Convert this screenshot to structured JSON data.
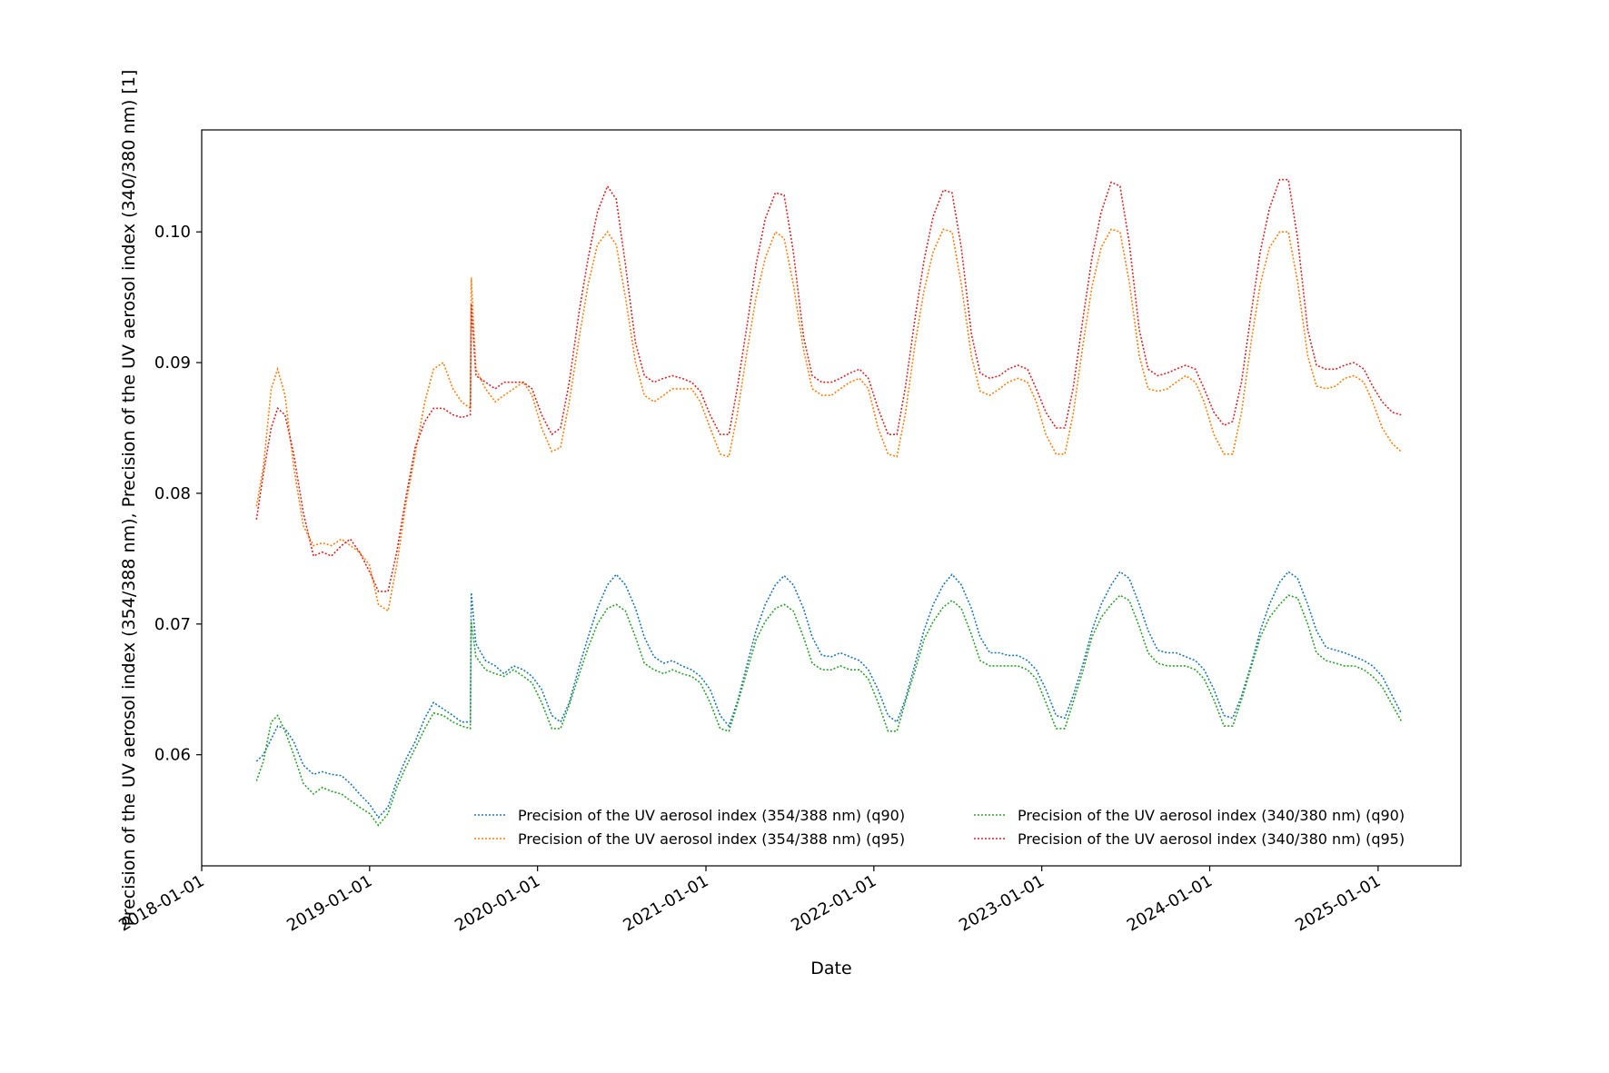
{
  "chart_data": {
    "type": "line",
    "title": "",
    "xlabel": "Date",
    "ylabel": "Precision of the UV aerosol index (354/388 nm), Precision of the UV aerosol index (340/380 nm) [1]",
    "x_range": [
      "2018-01-01",
      "2025-06-30"
    ],
    "ylim": [
      0.0515,
      0.1078
    ],
    "x_ticks": [
      "2018-01-01",
      "2019-01-01",
      "2020-01-01",
      "2021-01-01",
      "2022-01-01",
      "2023-01-01",
      "2024-01-01",
      "2025-01-01"
    ],
    "y_ticks": [
      0.06,
      0.07,
      0.08,
      0.09,
      0.1
    ],
    "y_tick_labels": [
      "0.06",
      "0.07",
      "0.08",
      "0.09",
      "0.10"
    ],
    "grid": false,
    "legend_position": "lower-right",
    "legend_columns": 2,
    "line_style": "dotted",
    "x": [
      "2018-04-30",
      "2018-05-15",
      "2018-06-01",
      "2018-06-15",
      "2018-07-01",
      "2018-07-20",
      "2018-08-10",
      "2018-09-01",
      "2018-09-20",
      "2018-10-10",
      "2018-11-01",
      "2018-11-20",
      "2018-12-10",
      "2019-01-01",
      "2019-01-20",
      "2019-02-10",
      "2019-03-01",
      "2019-03-20",
      "2019-04-10",
      "2019-05-01",
      "2019-05-20",
      "2019-06-10",
      "2019-07-01",
      "2019-07-20",
      "2019-08-08",
      "2019-08-10",
      "2019-08-20",
      "2019-09-10",
      "2019-10-01",
      "2019-10-20",
      "2019-11-10",
      "2019-12-01",
      "2019-12-20",
      "2020-01-10",
      "2020-02-01",
      "2020-02-20",
      "2020-03-10",
      "2020-04-01",
      "2020-04-20",
      "2020-05-10",
      "2020-06-01",
      "2020-06-20",
      "2020-07-10",
      "2020-08-01",
      "2020-08-20",
      "2020-09-10",
      "2020-10-01",
      "2020-10-20",
      "2020-11-10",
      "2020-12-01",
      "2020-12-20",
      "2021-01-10",
      "2021-02-01",
      "2021-02-20",
      "2021-03-10",
      "2021-04-01",
      "2021-04-20",
      "2021-05-10",
      "2021-06-01",
      "2021-06-20",
      "2021-07-10",
      "2021-08-01",
      "2021-08-20",
      "2021-09-10",
      "2021-10-01",
      "2021-10-20",
      "2021-11-10",
      "2021-12-01",
      "2021-12-20",
      "2022-01-10",
      "2022-02-01",
      "2022-02-20",
      "2022-03-10",
      "2022-04-01",
      "2022-04-20",
      "2022-05-10",
      "2022-06-01",
      "2022-06-20",
      "2022-07-10",
      "2022-08-01",
      "2022-08-20",
      "2022-09-10",
      "2022-10-01",
      "2022-10-20",
      "2022-11-10",
      "2022-12-01",
      "2022-12-20",
      "2023-01-10",
      "2023-02-01",
      "2023-02-20",
      "2023-03-10",
      "2023-04-01",
      "2023-04-20",
      "2023-05-10",
      "2023-06-01",
      "2023-06-20",
      "2023-07-10",
      "2023-08-01",
      "2023-08-20",
      "2023-09-10",
      "2023-10-01",
      "2023-10-20",
      "2023-11-10",
      "2023-12-01",
      "2023-12-20",
      "2024-01-10",
      "2024-02-01",
      "2024-02-20",
      "2024-03-10",
      "2024-04-01",
      "2024-04-20",
      "2024-05-10",
      "2024-06-01",
      "2024-06-20",
      "2024-07-10",
      "2024-08-01",
      "2024-08-20",
      "2024-09-10",
      "2024-10-01",
      "2024-10-20",
      "2024-11-10",
      "2024-12-01",
      "2024-12-20",
      "2025-01-10",
      "2025-02-01",
      "2025-02-20"
    ],
    "series": [
      {
        "name": "Precision of the UV aerosol index (354/388 nm) (q90)",
        "color": "#1f77b4",
        "values": [
          0.0595,
          0.06,
          0.0612,
          0.0622,
          0.062,
          0.061,
          0.0592,
          0.0585,
          0.0587,
          0.0585,
          0.0584,
          0.0578,
          0.057,
          0.0562,
          0.0552,
          0.056,
          0.058,
          0.0596,
          0.061,
          0.0628,
          0.064,
          0.0635,
          0.063,
          0.0625,
          0.0625,
          0.0724,
          0.0685,
          0.0672,
          0.0668,
          0.0662,
          0.0668,
          0.0665,
          0.066,
          0.065,
          0.063,
          0.0625,
          0.064,
          0.0668,
          0.069,
          0.0712,
          0.073,
          0.0738,
          0.073,
          0.0712,
          0.069,
          0.0675,
          0.067,
          0.0672,
          0.0668,
          0.0665,
          0.066,
          0.065,
          0.063,
          0.0622,
          0.064,
          0.067,
          0.0695,
          0.0715,
          0.073,
          0.0737,
          0.073,
          0.0712,
          0.069,
          0.0676,
          0.0675,
          0.0678,
          0.0675,
          0.0672,
          0.0665,
          0.065,
          0.063,
          0.0625,
          0.0642,
          0.067,
          0.0695,
          0.0715,
          0.073,
          0.0738,
          0.073,
          0.0712,
          0.069,
          0.0678,
          0.0678,
          0.0676,
          0.0676,
          0.0672,
          0.0665,
          0.065,
          0.063,
          0.0628,
          0.0645,
          0.067,
          0.0695,
          0.0715,
          0.073,
          0.074,
          0.0735,
          0.0715,
          0.0695,
          0.068,
          0.0678,
          0.0678,
          0.0675,
          0.0672,
          0.0665,
          0.065,
          0.063,
          0.0628,
          0.0645,
          0.067,
          0.0695,
          0.0715,
          0.0732,
          0.074,
          0.0735,
          0.0715,
          0.0695,
          0.0682,
          0.068,
          0.0678,
          0.0675,
          0.0672,
          0.0668,
          0.066,
          0.0645,
          0.0632
        ]
      },
      {
        "name": "Precision of the UV aerosol index (354/388 nm) (q95)",
        "color": "#ff7f0e",
        "values": [
          0.079,
          0.082,
          0.088,
          0.0895,
          0.0875,
          0.082,
          0.0775,
          0.076,
          0.0762,
          0.076,
          0.0765,
          0.076,
          0.0755,
          0.0745,
          0.0715,
          0.071,
          0.0745,
          0.079,
          0.083,
          0.087,
          0.0895,
          0.09,
          0.088,
          0.087,
          0.0865,
          0.0965,
          0.0895,
          0.088,
          0.087,
          0.0875,
          0.088,
          0.0885,
          0.0875,
          0.085,
          0.0832,
          0.0835,
          0.087,
          0.092,
          0.096,
          0.099,
          0.1,
          0.099,
          0.095,
          0.09,
          0.0875,
          0.087,
          0.0875,
          0.088,
          0.088,
          0.088,
          0.087,
          0.085,
          0.083,
          0.0828,
          0.086,
          0.091,
          0.095,
          0.098,
          0.1,
          0.0995,
          0.096,
          0.091,
          0.088,
          0.0875,
          0.0875,
          0.088,
          0.0885,
          0.0888,
          0.088,
          0.085,
          0.083,
          0.0828,
          0.086,
          0.0915,
          0.0955,
          0.0985,
          0.1002,
          0.1,
          0.096,
          0.0905,
          0.0878,
          0.0875,
          0.088,
          0.0885,
          0.0888,
          0.0885,
          0.087,
          0.0845,
          0.083,
          0.083,
          0.086,
          0.0915,
          0.0958,
          0.0988,
          0.1002,
          0.1,
          0.0962,
          0.0905,
          0.088,
          0.0878,
          0.088,
          0.0885,
          0.089,
          0.0885,
          0.087,
          0.0845,
          0.083,
          0.083,
          0.0862,
          0.0918,
          0.096,
          0.0988,
          0.1,
          0.1,
          0.0962,
          0.0905,
          0.0882,
          0.088,
          0.0882,
          0.0888,
          0.089,
          0.0885,
          0.087,
          0.085,
          0.0838,
          0.0832
        ]
      },
      {
        "name": "Precision of the UV aerosol index (340/380 nm) (q90)",
        "color": "#2ca02c",
        "values": [
          0.058,
          0.0595,
          0.0625,
          0.063,
          0.0618,
          0.06,
          0.0578,
          0.057,
          0.0575,
          0.0572,
          0.057,
          0.0565,
          0.056,
          0.0555,
          0.0546,
          0.0555,
          0.0575,
          0.059,
          0.0605,
          0.062,
          0.0632,
          0.063,
          0.0625,
          0.0622,
          0.062,
          0.0702,
          0.0675,
          0.0665,
          0.0662,
          0.066,
          0.0665,
          0.066,
          0.0655,
          0.064,
          0.062,
          0.062,
          0.0638,
          0.0662,
          0.0682,
          0.07,
          0.0712,
          0.0715,
          0.071,
          0.069,
          0.067,
          0.0665,
          0.0662,
          0.0665,
          0.0662,
          0.066,
          0.0655,
          0.064,
          0.062,
          0.0618,
          0.0638,
          0.0665,
          0.0688,
          0.0702,
          0.0712,
          0.0715,
          0.071,
          0.069,
          0.067,
          0.0665,
          0.0665,
          0.0668,
          0.0665,
          0.0665,
          0.0658,
          0.064,
          0.0618,
          0.0618,
          0.064,
          0.0665,
          0.0688,
          0.0702,
          0.0713,
          0.0718,
          0.0712,
          0.0692,
          0.0672,
          0.0668,
          0.0668,
          0.0668,
          0.0668,
          0.0665,
          0.0658,
          0.064,
          0.062,
          0.062,
          0.064,
          0.0665,
          0.069,
          0.0705,
          0.0715,
          0.0722,
          0.0718,
          0.0698,
          0.0678,
          0.067,
          0.0668,
          0.0668,
          0.0668,
          0.0665,
          0.0658,
          0.0642,
          0.0622,
          0.0622,
          0.0642,
          0.0668,
          0.069,
          0.0705,
          0.0715,
          0.0722,
          0.072,
          0.07,
          0.0678,
          0.0672,
          0.067,
          0.0668,
          0.0668,
          0.0665,
          0.066,
          0.0652,
          0.0638,
          0.0626
        ]
      },
      {
        "name": "Precision of the UV aerosol index (340/380 nm) (q95)",
        "color": "#d62728",
        "values": [
          0.078,
          0.0815,
          0.085,
          0.0865,
          0.086,
          0.083,
          0.0785,
          0.0752,
          0.0755,
          0.0752,
          0.076,
          0.0765,
          0.0755,
          0.074,
          0.0725,
          0.0725,
          0.0755,
          0.0795,
          0.0835,
          0.0855,
          0.0865,
          0.0865,
          0.086,
          0.0858,
          0.086,
          0.0945,
          0.089,
          0.0885,
          0.088,
          0.0885,
          0.0885,
          0.0885,
          0.088,
          0.086,
          0.0845,
          0.085,
          0.0885,
          0.094,
          0.098,
          0.1015,
          0.1035,
          0.1025,
          0.0975,
          0.0915,
          0.089,
          0.0885,
          0.0888,
          0.089,
          0.0888,
          0.0885,
          0.0878,
          0.086,
          0.0845,
          0.0845,
          0.088,
          0.093,
          0.0975,
          0.101,
          0.103,
          0.1028,
          0.0985,
          0.092,
          0.089,
          0.0885,
          0.0885,
          0.0888,
          0.0892,
          0.0895,
          0.0888,
          0.0865,
          0.0845,
          0.0845,
          0.088,
          0.0935,
          0.0978,
          0.1012,
          0.1032,
          0.103,
          0.0988,
          0.0922,
          0.0892,
          0.0888,
          0.089,
          0.0895,
          0.0898,
          0.0895,
          0.088,
          0.0862,
          0.085,
          0.085,
          0.088,
          0.0935,
          0.098,
          0.1015,
          0.1038,
          0.1035,
          0.0992,
          0.0925,
          0.0895,
          0.089,
          0.0892,
          0.0895,
          0.0898,
          0.0895,
          0.088,
          0.0862,
          0.0852,
          0.0855,
          0.0885,
          0.094,
          0.0985,
          0.1018,
          0.104,
          0.104,
          0.0995,
          0.0925,
          0.0898,
          0.0895,
          0.0895,
          0.0898,
          0.09,
          0.0895,
          0.0882,
          0.087,
          0.0862,
          0.086
        ]
      }
    ]
  }
}
